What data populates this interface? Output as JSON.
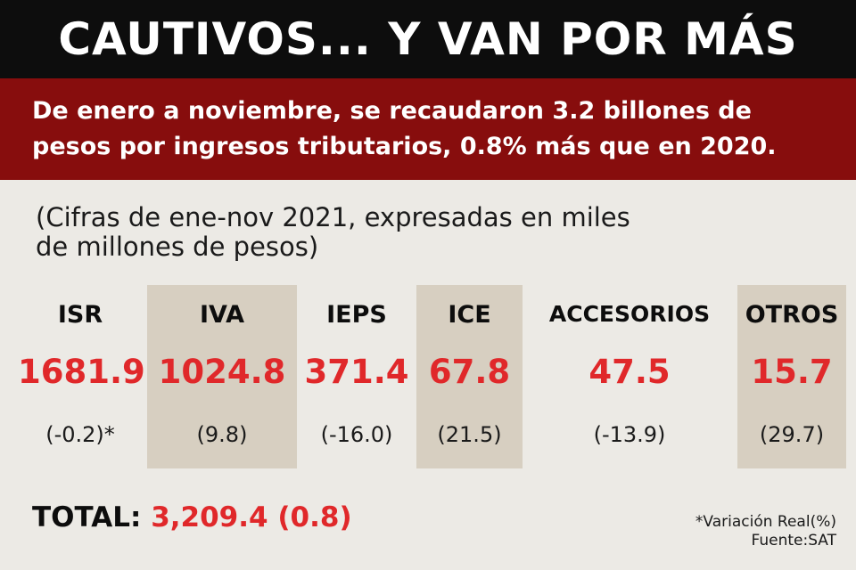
{
  "header": {
    "title": "CAUTIVOS... Y VAN POR MÁS",
    "subtitle_line1": "De enero a noviembre, se recaudaron 3.2 billones de",
    "subtitle_line2": "pesos por ingresos tributarios, 0.8% más que en 2020."
  },
  "note": {
    "line1": "(Cifras de ene-nov 2021, expresadas en miles",
    "line2": "de millones de pesos)"
  },
  "items": [
    {
      "label": "ISR",
      "value": "1681.9",
      "variation": "(-0.2)*",
      "shaded": false
    },
    {
      "label": "IVA",
      "value": "1024.8",
      "variation": "(9.8)",
      "shaded": true
    },
    {
      "label": "IEPS",
      "value": "371.4",
      "variation": "(-16.0)",
      "shaded": false
    },
    {
      "label": "ICE",
      "value": "67.8",
      "variation": "(21.5)",
      "shaded": true
    },
    {
      "label": "ACCESORIOS",
      "value": "47.5",
      "variation": "(-13.9)",
      "shaded": false
    },
    {
      "label": "OTROS",
      "value": "15.7",
      "variation": "(29.7)",
      "shaded": true
    }
  ],
  "total": {
    "label": "TOTAL:",
    "value": "3,209.4 (0.8)"
  },
  "footnote": {
    "variation": "*Variación Real(%)",
    "source": "Fuente:SAT"
  },
  "colors": {
    "title_bg": "#0d0d0d",
    "subtitle_bg": "#870d0d",
    "value_red": "#e0282a",
    "shade": "#d7cfc1",
    "background": "#eceae5"
  }
}
